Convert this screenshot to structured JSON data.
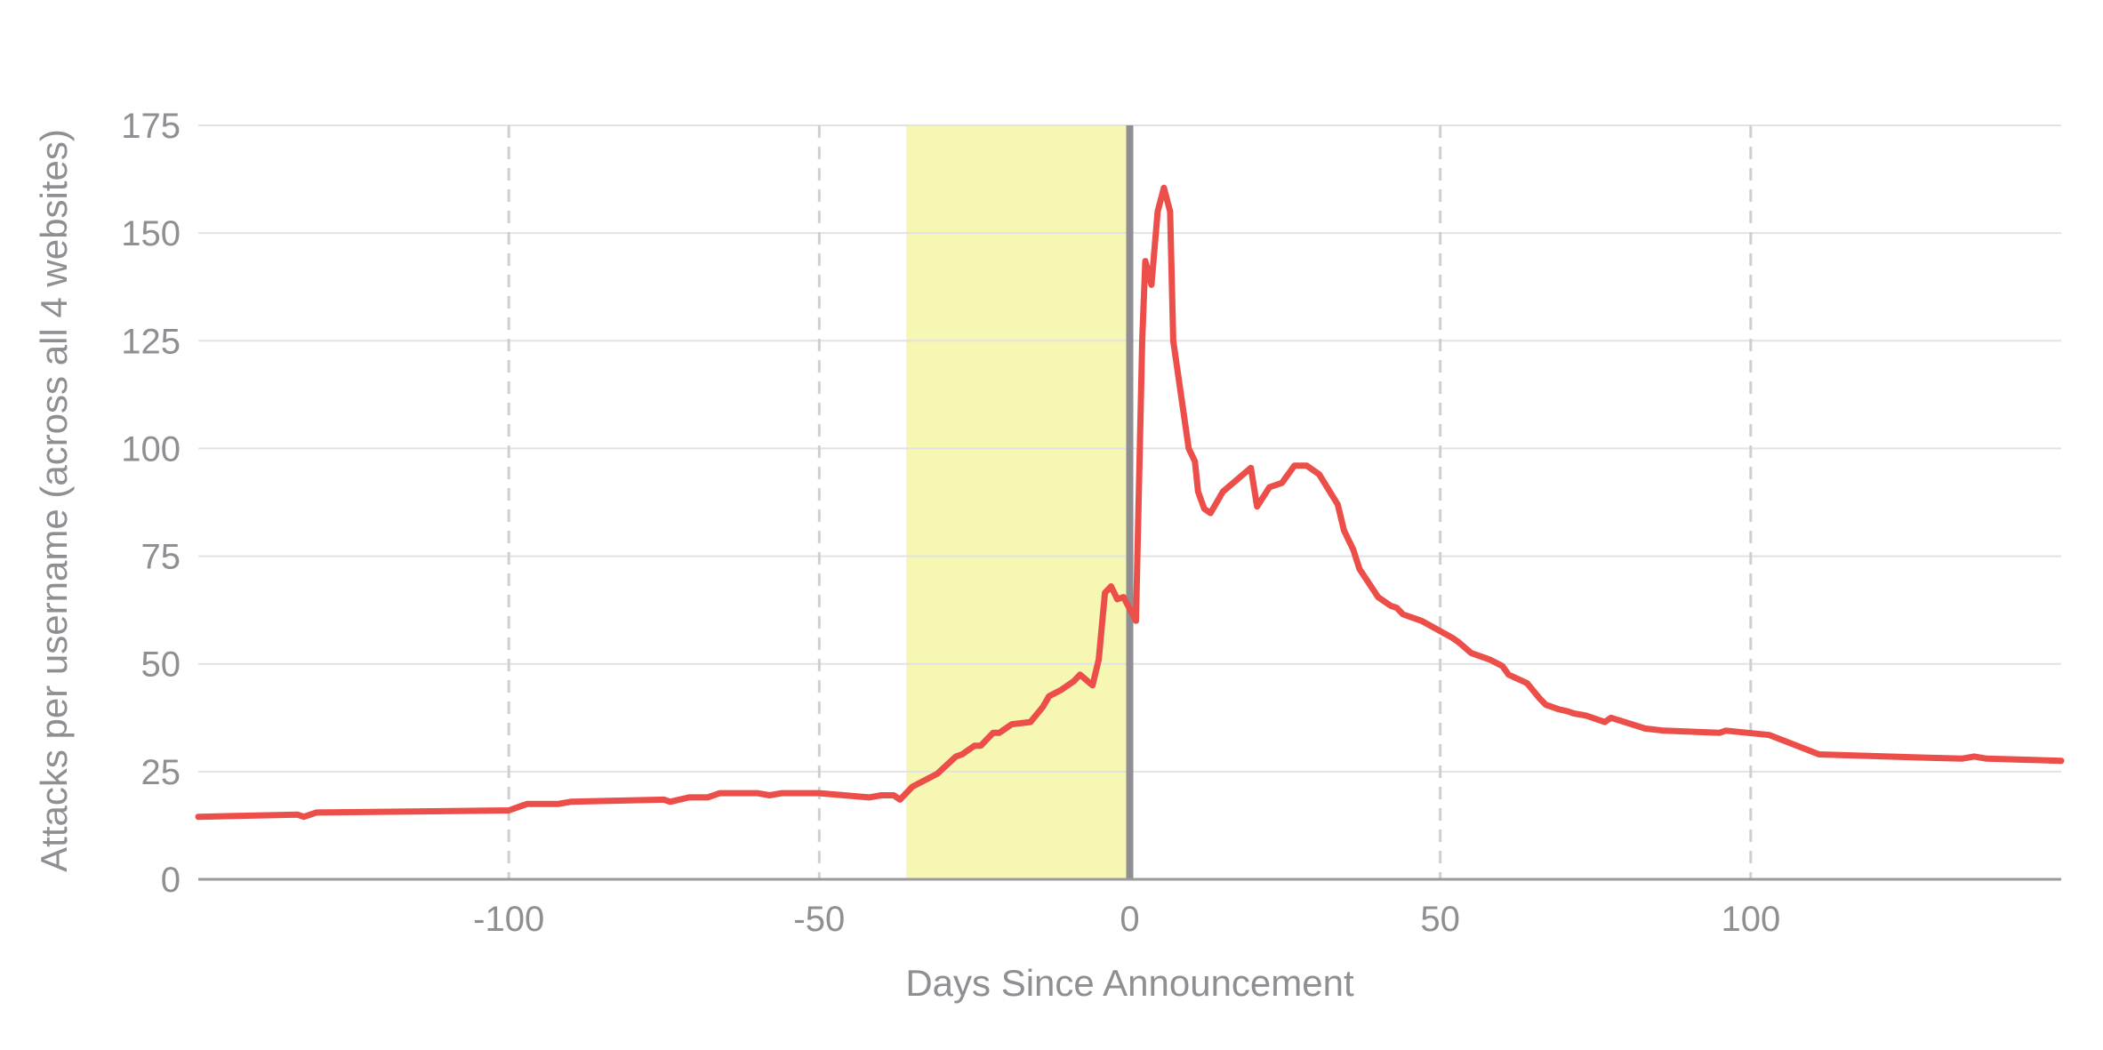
{
  "chart_data": {
    "type": "line",
    "title": "",
    "xlabel": "Days Since Announcement",
    "ylabel": "Attacks per username (across all 4 websites)",
    "xlim": [
      -150,
      150
    ],
    "ylim": [
      0,
      175
    ],
    "x_ticks": [
      -100,
      -50,
      0,
      50,
      100
    ],
    "x_tick_labels": [
      "-100",
      "-50",
      "0",
      "50",
      "100"
    ],
    "y_ticks": [
      0,
      25,
      50,
      75,
      100,
      125,
      150,
      175
    ],
    "y_tick_labels": [
      "0",
      "25",
      "50",
      "75",
      "100",
      "125",
      "150",
      "175"
    ],
    "grid": {
      "horizontal": true,
      "vertical_dashed": true
    },
    "legend": "none",
    "highlight_region": {
      "x_start": -36,
      "x_end": 0,
      "color": "#f7f7b4"
    },
    "reference_line": {
      "x": 0,
      "color": "#8e8e93"
    },
    "series": [
      {
        "color": "#ec4e4a",
        "points": [
          [
            -150,
            14.5
          ],
          [
            -134,
            15.0
          ],
          [
            -133,
            14.5
          ],
          [
            -131,
            15.5
          ],
          [
            -100,
            16.0
          ],
          [
            -98,
            17.0
          ],
          [
            -97,
            17.5
          ],
          [
            -92,
            17.5
          ],
          [
            -90,
            18.0
          ],
          [
            -75,
            18.5
          ],
          [
            -74,
            18.0
          ],
          [
            -71,
            19.0
          ],
          [
            -68,
            19.0
          ],
          [
            -66,
            20.0
          ],
          [
            -60,
            20.0
          ],
          [
            -58,
            19.5
          ],
          [
            -56,
            20.0
          ],
          [
            -50,
            20.0
          ],
          [
            -42,
            19.0
          ],
          [
            -40,
            19.5
          ],
          [
            -38,
            19.5
          ],
          [
            -37,
            18.5
          ],
          [
            -35,
            21.5
          ],
          [
            -31,
            24.5
          ],
          [
            -28,
            28.5
          ],
          [
            -27,
            29.0
          ],
          [
            -25,
            31.0
          ],
          [
            -24,
            31.0
          ],
          [
            -22,
            34.0
          ],
          [
            -21,
            34.0
          ],
          [
            -19,
            36.0
          ],
          [
            -16,
            36.5
          ],
          [
            -14,
            40.0
          ],
          [
            -13,
            42.5
          ],
          [
            -11,
            44.0
          ],
          [
            -9,
            46.0
          ],
          [
            -8,
            47.5
          ],
          [
            -6,
            45.0
          ],
          [
            -5,
            51.0
          ],
          [
            -4,
            66.5
          ],
          [
            -3,
            68.0
          ],
          [
            -2,
            65.0
          ],
          [
            -1,
            65.5
          ],
          [
            1,
            60.0
          ],
          [
            2,
            125.0
          ],
          [
            2.5,
            143.5
          ],
          [
            3.5,
            138.0
          ],
          [
            4.5,
            155.0
          ],
          [
            5.5,
            160.5
          ],
          [
            6.5,
            155.0
          ],
          [
            7,
            125.0
          ],
          [
            9.5,
            100.0
          ],
          [
            10.5,
            97.0
          ],
          [
            11,
            90.0
          ],
          [
            12,
            86.0
          ],
          [
            13,
            85.0
          ],
          [
            15,
            90.0
          ],
          [
            19.5,
            95.5
          ],
          [
            20.5,
            86.5
          ],
          [
            22.5,
            91.0
          ],
          [
            24.5,
            92.0
          ],
          [
            26.5,
            96.0
          ],
          [
            28.5,
            96.0
          ],
          [
            30.5,
            94.0
          ],
          [
            33.5,
            87.0
          ],
          [
            34.5,
            81.0
          ],
          [
            36,
            76.5
          ],
          [
            37,
            72.0
          ],
          [
            40,
            65.5
          ],
          [
            42,
            63.5
          ],
          [
            43,
            63.0
          ],
          [
            44,
            61.5
          ],
          [
            47,
            60.0
          ],
          [
            52,
            56.0
          ],
          [
            53,
            55.0
          ],
          [
            55,
            52.5
          ],
          [
            58,
            51.0
          ],
          [
            60,
            49.5
          ],
          [
            61,
            47.5
          ],
          [
            64,
            45.5
          ],
          [
            66,
            42.0
          ],
          [
            67,
            40.5
          ],
          [
            69,
            39.5
          ],
          [
            70.5,
            39.0
          ],
          [
            71.5,
            38.5
          ],
          [
            73.5,
            38.0
          ],
          [
            75.5,
            37.0
          ],
          [
            76.5,
            36.5
          ],
          [
            77.5,
            37.5
          ],
          [
            83,
            35.0
          ],
          [
            86,
            34.5
          ],
          [
            95,
            34.0
          ],
          [
            96,
            34.5
          ],
          [
            103,
            33.5
          ],
          [
            111,
            29.0
          ],
          [
            122,
            28.5
          ],
          [
            134,
            28.0
          ],
          [
            136,
            28.5
          ],
          [
            138,
            28.0
          ],
          [
            150,
            27.5
          ]
        ]
      }
    ]
  }
}
